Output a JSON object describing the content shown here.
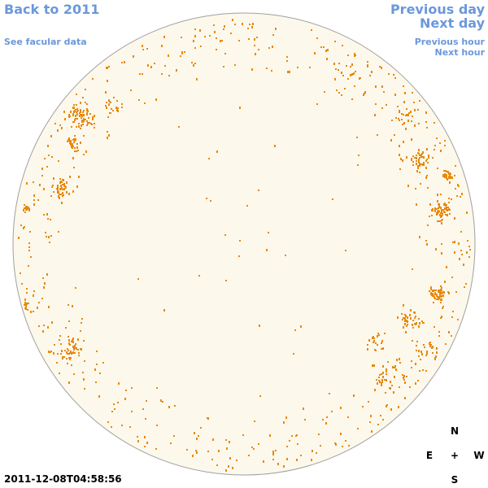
{
  "nav": {
    "back_label": "Back to 2011",
    "facular_label": "See facular data",
    "previous_day_label": "Previous day",
    "next_day_label": "Next day",
    "previous_hour_label": "Previous hour",
    "next_hour_label": "Next hour"
  },
  "compass": {
    "north": "N",
    "east": "E",
    "center": "+",
    "west": "W",
    "south": "S"
  },
  "timestamp": "2011-12-08T04:58:56",
  "colors": {
    "link": "#6b98dc",
    "disk_fill": "#fdf8ec",
    "disk_outline": "#a0a0a0",
    "facula": "#e8890c"
  },
  "icons": {
    "solar_disk": "sun-disk-icon"
  }
}
